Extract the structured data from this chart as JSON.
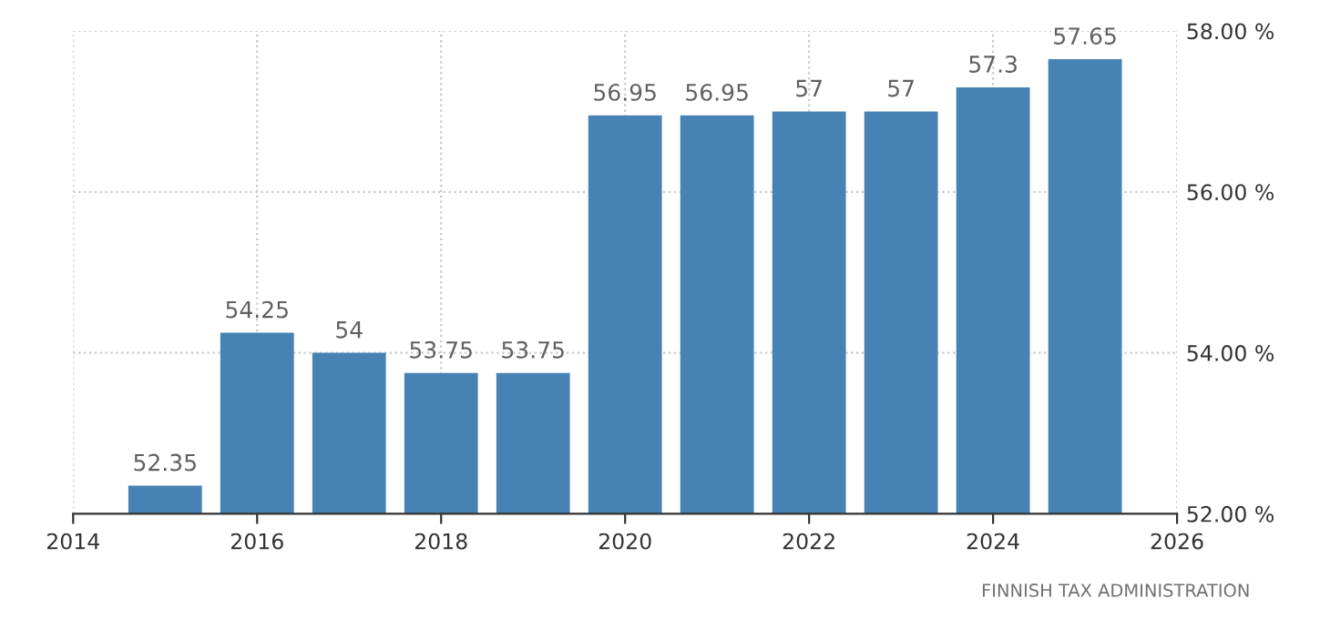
{
  "chart_data": {
    "type": "bar",
    "x": [
      2015,
      2016,
      2017,
      2018,
      2019,
      2020,
      2021,
      2022,
      2023,
      2024,
      2025
    ],
    "values": [
      52.35,
      54.25,
      54,
      53.75,
      53.75,
      56.95,
      56.95,
      57,
      57,
      57.3,
      57.65
    ],
    "color": "#4682b4",
    "data_labels": true,
    "xlim": [
      2014,
      2026
    ],
    "xticks": [
      2014,
      2016,
      2018,
      2020,
      2022,
      2024,
      2026
    ],
    "ylim": [
      52,
      58
    ],
    "yticks": [
      {
        "value": 52,
        "label": "52.00 %"
      },
      {
        "value": 54,
        "label": "54.00 %"
      },
      {
        "value": 56,
        "label": "56.00 %"
      },
      {
        "value": 58,
        "label": "58.00 %"
      }
    ],
    "grid": true,
    "annotations": [
      "FINNISH TAX ADMINISTRATION"
    ]
  }
}
